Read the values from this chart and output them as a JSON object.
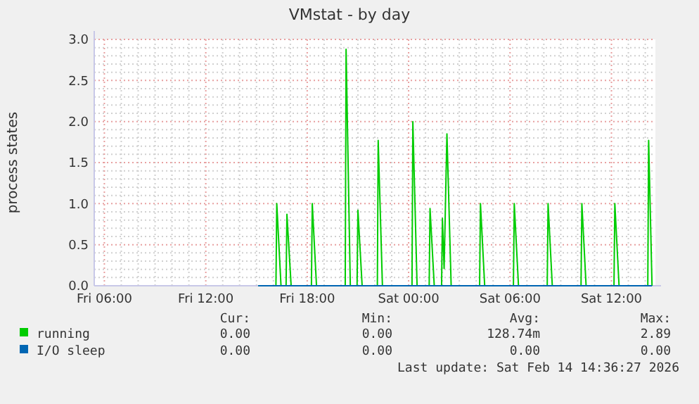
{
  "chart_data": {
    "type": "line",
    "title": "VMstat - by day",
    "ylabel": "process states",
    "x": [
      "2026-02-13T15:06",
      "2026-02-13T16:09",
      "2026-02-13T16:12",
      "2026-02-13T16:27",
      "2026-02-13T16:45",
      "2026-02-13T16:48",
      "2026-02-13T17:03",
      "2026-02-13T18:15",
      "2026-02-13T18:18",
      "2026-02-13T18:33",
      "2026-02-13T20:15",
      "2026-02-13T20:18",
      "2026-02-13T20:33",
      "2026-02-13T20:57",
      "2026-02-13T21:00",
      "2026-02-13T21:15",
      "2026-02-13T22:09",
      "2026-02-13T22:12",
      "2026-02-13T22:27",
      "2026-02-14T00:12",
      "2026-02-14T00:15",
      "2026-02-14T00:30",
      "2026-02-14T01:13",
      "2026-02-14T01:16",
      "2026-02-14T01:31",
      "2026-02-14T01:57",
      "2026-02-14T02:00",
      "2026-02-14T02:06",
      "2026-02-14T02:16",
      "2026-02-14T02:31",
      "2026-02-14T04:12",
      "2026-02-14T04:15",
      "2026-02-14T04:30",
      "2026-02-14T06:12",
      "2026-02-14T06:15",
      "2026-02-14T06:30",
      "2026-02-14T08:12",
      "2026-02-14T08:15",
      "2026-02-14T08:30",
      "2026-02-14T10:12",
      "2026-02-14T10:15",
      "2026-02-14T10:30",
      "2026-02-14T12:09",
      "2026-02-14T12:12",
      "2026-02-14T12:27",
      "2026-02-14T14:09",
      "2026-02-14T14:12",
      "2026-02-14T14:24"
    ],
    "series": [
      {
        "name": "running",
        "color": "#00cc00",
        "values": [
          0,
          0,
          1.0,
          0,
          0,
          0.87,
          0,
          0,
          1.0,
          0,
          0,
          2.88,
          0,
          0,
          0.92,
          0,
          0,
          1.77,
          0,
          0,
          2.0,
          0,
          0,
          0.94,
          0,
          0,
          0.82,
          0.21,
          1.85,
          0,
          0,
          1.0,
          0,
          0,
          1.0,
          0,
          0,
          1.0,
          0,
          0,
          1.0,
          0,
          0,
          1.0,
          0,
          0,
          1.77,
          0
        ]
      },
      {
        "name": "I/O sleep",
        "color": "#0066b3",
        "x": [
          "2026-02-13T15:06",
          "2026-02-14T14:24"
        ],
        "values": [
          0,
          0
        ]
      }
    ],
    "xlim": [
      "2026-02-13T05:24",
      "2026-02-14T14:36"
    ],
    "xticks": [
      {
        "value": "2026-02-13T06:00",
        "label": "Fri 06:00"
      },
      {
        "value": "2026-02-13T12:00",
        "label": "Fri 12:00"
      },
      {
        "value": "2026-02-13T18:00",
        "label": "Fri 18:00"
      },
      {
        "value": "2026-02-14T00:00",
        "label": "Sat 00:00"
      },
      {
        "value": "2026-02-14T06:00",
        "label": "Sat 06:00"
      },
      {
        "value": "2026-02-14T12:00",
        "label": "Sat 12:00"
      }
    ],
    "ylim": [
      0,
      3
    ],
    "yticks": [
      {
        "value": 0,
        "label": "0.0"
      },
      {
        "value": 0.5,
        "label": "0.5"
      },
      {
        "value": 1,
        "label": "1.0"
      },
      {
        "value": 1.5,
        "label": "1.5"
      },
      {
        "value": 2,
        "label": "2.0"
      },
      {
        "value": 2.5,
        "label": "2.5"
      },
      {
        "value": 3,
        "label": "3.0"
      }
    ],
    "grid": true,
    "legend": "bottom",
    "line_style": "solid",
    "annotations": [
      "Cur:",
      "Min:",
      "Avg:",
      "Max:",
      "0.00",
      "0.00",
      "128.74m",
      "2.89",
      "0.00",
      "0.00",
      "0.00",
      "0.00",
      "Last update: Sat Feb 14 14:36:27 2026"
    ]
  }
}
